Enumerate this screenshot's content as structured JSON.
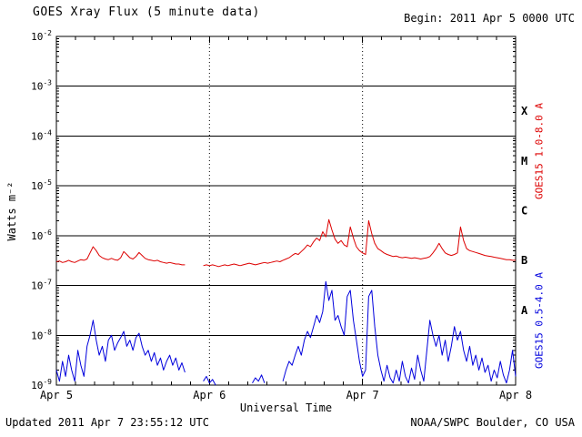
{
  "header": {
    "title": "GOES Xray Flux (5 minute data)",
    "begin": "Begin: 2011 Apr 5 0000 UTC"
  },
  "footer": {
    "updated": "Updated 2011 Apr 7 23:55:12 UTC",
    "credit": "NOAA/SWPC Boulder, CO USA"
  },
  "chart_data": {
    "type": "line",
    "title": "GOES Xray Flux (5 minute data)",
    "xlabel": "Universal Time",
    "ylabel": "Watts m⁻²",
    "xlim": [
      0,
      3
    ],
    "x_tick_positions": [
      0,
      1,
      2,
      3
    ],
    "x_tick_labels": [
      "Apr 5",
      "Apr 6",
      "Apr 7",
      "Apr 8"
    ],
    "y_exponent_top": -2,
    "y_exponent_bottom": -9,
    "y_tick_exponents": [
      -2,
      -3,
      -4,
      -5,
      -6,
      -7,
      -8,
      -9
    ],
    "grid_vertical_days": [
      1,
      2
    ],
    "flare_classes": [
      {
        "label": "X",
        "exp": -3.5
      },
      {
        "label": "M",
        "exp": -4.5
      },
      {
        "label": "C",
        "exp": -5.5
      },
      {
        "label": "B",
        "exp": -6.5
      },
      {
        "label": "A",
        "exp": -7.5
      }
    ],
    "series": [
      {
        "name": "GOES15 1.0-8.0 A",
        "color": "#dd0000",
        "points": [
          [
            0.0,
            3e-07
          ],
          [
            0.02,
            3.1e-07
          ],
          [
            0.04,
            2.9e-07
          ],
          [
            0.06,
            3e-07
          ],
          [
            0.08,
            3.2e-07
          ],
          [
            0.1,
            3e-07
          ],
          [
            0.12,
            2.9e-07
          ],
          [
            0.14,
            3.1e-07
          ],
          [
            0.16,
            3.3e-07
          ],
          [
            0.18,
            3.2e-07
          ],
          [
            0.2,
            3.4e-07
          ],
          [
            0.22,
            4.5e-07
          ],
          [
            0.24,
            6e-07
          ],
          [
            0.26,
            5e-07
          ],
          [
            0.28,
            4e-07
          ],
          [
            0.3,
            3.6e-07
          ],
          [
            0.32,
            3.4e-07
          ],
          [
            0.34,
            3.3e-07
          ],
          [
            0.36,
            3.5e-07
          ],
          [
            0.38,
            3.3e-07
          ],
          [
            0.4,
            3.2e-07
          ],
          [
            0.42,
            3.6e-07
          ],
          [
            0.44,
            4.8e-07
          ],
          [
            0.46,
            4.2e-07
          ],
          [
            0.48,
            3.6e-07
          ],
          [
            0.5,
            3.4e-07
          ],
          [
            0.52,
            3.8e-07
          ],
          [
            0.54,
            4.6e-07
          ],
          [
            0.56,
            4e-07
          ],
          [
            0.58,
            3.5e-07
          ],
          [
            0.6,
            3.3e-07
          ],
          [
            0.62,
            3.2e-07
          ],
          [
            0.64,
            3.1e-07
          ],
          [
            0.66,
            3.2e-07
          ],
          [
            0.68,
            3e-07
          ],
          [
            0.7,
            2.9e-07
          ],
          [
            0.72,
            2.8e-07
          ],
          [
            0.74,
            2.9e-07
          ],
          [
            0.76,
            2.8e-07
          ],
          [
            0.78,
            2.7e-07
          ],
          [
            0.8,
            2.7e-07
          ],
          [
            0.82,
            2.6e-07
          ],
          [
            0.84,
            2.6e-07
          ],
          [
            0.88,
            null
          ],
          [
            0.96,
            2.5e-07
          ],
          [
            0.98,
            2.6e-07
          ],
          [
            1.0,
            2.5e-07
          ],
          [
            1.02,
            2.6e-07
          ],
          [
            1.04,
            2.5e-07
          ],
          [
            1.06,
            2.4e-07
          ],
          [
            1.08,
            2.5e-07
          ],
          [
            1.1,
            2.6e-07
          ],
          [
            1.12,
            2.5e-07
          ],
          [
            1.14,
            2.6e-07
          ],
          [
            1.16,
            2.7e-07
          ],
          [
            1.18,
            2.6e-07
          ],
          [
            1.2,
            2.5e-07
          ],
          [
            1.22,
            2.6e-07
          ],
          [
            1.24,
            2.7e-07
          ],
          [
            1.26,
            2.8e-07
          ],
          [
            1.28,
            2.7e-07
          ],
          [
            1.3,
            2.6e-07
          ],
          [
            1.32,
            2.7e-07
          ],
          [
            1.34,
            2.8e-07
          ],
          [
            1.36,
            2.9e-07
          ],
          [
            1.38,
            2.8e-07
          ],
          [
            1.4,
            2.9e-07
          ],
          [
            1.42,
            3e-07
          ],
          [
            1.44,
            3.1e-07
          ],
          [
            1.46,
            3e-07
          ],
          [
            1.48,
            3.2e-07
          ],
          [
            1.5,
            3.4e-07
          ],
          [
            1.52,
            3.6e-07
          ],
          [
            1.54,
            4e-07
          ],
          [
            1.56,
            4.4e-07
          ],
          [
            1.58,
            4.2e-07
          ],
          [
            1.6,
            4.8e-07
          ],
          [
            1.62,
            5.5e-07
          ],
          [
            1.64,
            6.5e-07
          ],
          [
            1.66,
            6e-07
          ],
          [
            1.68,
            7.5e-07
          ],
          [
            1.7,
            9e-07
          ],
          [
            1.72,
            8e-07
          ],
          [
            1.74,
            1.2e-06
          ],
          [
            1.76,
            9.5e-07
          ],
          [
            1.78,
            2.1e-06
          ],
          [
            1.8,
            1.3e-06
          ],
          [
            1.82,
            8.5e-07
          ],
          [
            1.84,
            7e-07
          ],
          [
            1.86,
            8e-07
          ],
          [
            1.88,
            6.5e-07
          ],
          [
            1.9,
            6e-07
          ],
          [
            1.92,
            1.5e-06
          ],
          [
            1.94,
            9e-07
          ],
          [
            1.96,
            6e-07
          ],
          [
            1.98,
            5e-07
          ],
          [
            2.0,
            4.5e-07
          ],
          [
            2.02,
            4.2e-07
          ],
          [
            2.04,
            2e-06
          ],
          [
            2.06,
            1.1e-06
          ],
          [
            2.08,
            7e-07
          ],
          [
            2.1,
            5.5e-07
          ],
          [
            2.12,
            5e-07
          ],
          [
            2.14,
            4.5e-07
          ],
          [
            2.16,
            4.2e-07
          ],
          [
            2.18,
            4e-07
          ],
          [
            2.2,
            3.8e-07
          ],
          [
            2.22,
            3.9e-07
          ],
          [
            2.24,
            3.7e-07
          ],
          [
            2.26,
            3.6e-07
          ],
          [
            2.28,
            3.7e-07
          ],
          [
            2.3,
            3.6e-07
          ],
          [
            2.32,
            3.5e-07
          ],
          [
            2.34,
            3.6e-07
          ],
          [
            2.36,
            3.5e-07
          ],
          [
            2.38,
            3.4e-07
          ],
          [
            2.4,
            3.5e-07
          ],
          [
            2.42,
            3.6e-07
          ],
          [
            2.44,
            3.8e-07
          ],
          [
            2.46,
            4.5e-07
          ],
          [
            2.48,
            5.5e-07
          ],
          [
            2.5,
            7e-07
          ],
          [
            2.52,
            5.5e-07
          ],
          [
            2.54,
            4.5e-07
          ],
          [
            2.56,
            4.2e-07
          ],
          [
            2.58,
            4e-07
          ],
          [
            2.6,
            4.2e-07
          ],
          [
            2.62,
            4.5e-07
          ],
          [
            2.64,
            1.5e-06
          ],
          [
            2.66,
            8e-07
          ],
          [
            2.68,
            5.5e-07
          ],
          [
            2.7,
            5e-07
          ],
          [
            2.72,
            4.8e-07
          ],
          [
            2.74,
            4.6e-07
          ],
          [
            2.76,
            4.4e-07
          ],
          [
            2.78,
            4.2e-07
          ],
          [
            2.8,
            4e-07
          ],
          [
            2.82,
            3.9e-07
          ],
          [
            2.84,
            3.8e-07
          ],
          [
            2.86,
            3.7e-07
          ],
          [
            2.88,
            3.6e-07
          ],
          [
            2.9,
            3.5e-07
          ],
          [
            2.92,
            3.4e-07
          ],
          [
            2.94,
            3.3e-07
          ],
          [
            2.96,
            3.3e-07
          ],
          [
            2.98,
            3.2e-07
          ],
          [
            3.0,
            3.2e-07
          ]
        ]
      },
      {
        "name": "GOES15 0.5-4.0 A",
        "color": "#0000dd",
        "points": [
          [
            0.0,
            2e-09
          ],
          [
            0.02,
            1.2e-09
          ],
          [
            0.04,
            3e-09
          ],
          [
            0.06,
            1.5e-09
          ],
          [
            0.08,
            4e-09
          ],
          [
            0.1,
            2e-09
          ],
          [
            0.12,
            1.2e-09
          ],
          [
            0.14,
            5e-09
          ],
          [
            0.16,
            2.5e-09
          ],
          [
            0.18,
            1.5e-09
          ],
          [
            0.2,
            6e-09
          ],
          [
            0.22,
            1e-08
          ],
          [
            0.24,
            2e-08
          ],
          [
            0.26,
            8e-09
          ],
          [
            0.28,
            4e-09
          ],
          [
            0.3,
            6e-09
          ],
          [
            0.32,
            3e-09
          ],
          [
            0.34,
            8e-09
          ],
          [
            0.36,
            1e-08
          ],
          [
            0.38,
            5e-09
          ],
          [
            0.4,
            7e-09
          ],
          [
            0.42,
            9e-09
          ],
          [
            0.44,
            1.2e-08
          ],
          [
            0.46,
            6e-09
          ],
          [
            0.48,
            8e-09
          ],
          [
            0.5,
            5e-09
          ],
          [
            0.52,
            9e-09
          ],
          [
            0.54,
            1.1e-08
          ],
          [
            0.56,
            6e-09
          ],
          [
            0.58,
            4e-09
          ],
          [
            0.6,
            5e-09
          ],
          [
            0.62,
            3e-09
          ],
          [
            0.64,
            4.5e-09
          ],
          [
            0.66,
            2.5e-09
          ],
          [
            0.68,
            3.5e-09
          ],
          [
            0.7,
            2e-09
          ],
          [
            0.72,
            3e-09
          ],
          [
            0.74,
            4e-09
          ],
          [
            0.76,
            2.5e-09
          ],
          [
            0.78,
            3.5e-09
          ],
          [
            0.8,
            2e-09
          ],
          [
            0.82,
            2.8e-09
          ],
          [
            0.84,
            1.8e-09
          ],
          [
            0.88,
            null
          ],
          [
            0.96,
            1.2e-09
          ],
          [
            0.98,
            1.5e-09
          ],
          [
            1.0,
            1.1e-09
          ],
          [
            1.02,
            1.3e-09
          ],
          [
            1.04,
            1e-09
          ],
          [
            1.08,
            null
          ],
          [
            1.28,
            1.1e-09
          ],
          [
            1.3,
            1.4e-09
          ],
          [
            1.32,
            1.2e-09
          ],
          [
            1.34,
            1.6e-09
          ],
          [
            1.36,
            1.1e-09
          ],
          [
            1.4,
            null
          ],
          [
            1.48,
            1.2e-09
          ],
          [
            1.5,
            2e-09
          ],
          [
            1.52,
            3e-09
          ],
          [
            1.54,
            2.5e-09
          ],
          [
            1.56,
            4e-09
          ],
          [
            1.58,
            6e-09
          ],
          [
            1.6,
            4e-09
          ],
          [
            1.62,
            8e-09
          ],
          [
            1.64,
            1.2e-08
          ],
          [
            1.66,
            9e-09
          ],
          [
            1.68,
            1.5e-08
          ],
          [
            1.7,
            2.5e-08
          ],
          [
            1.72,
            1.8e-08
          ],
          [
            1.74,
            3e-08
          ],
          [
            1.76,
            1.2e-07
          ],
          [
            1.78,
            5e-08
          ],
          [
            1.8,
            8e-08
          ],
          [
            1.82,
            2e-08
          ],
          [
            1.84,
            2.5e-08
          ],
          [
            1.86,
            1.5e-08
          ],
          [
            1.88,
            1e-08
          ],
          [
            1.9,
            6e-08
          ],
          [
            1.92,
            8e-08
          ],
          [
            1.94,
            2e-08
          ],
          [
            1.96,
            8e-09
          ],
          [
            1.98,
            3e-09
          ],
          [
            2.0,
            1.5e-09
          ],
          [
            2.02,
            2e-09
          ],
          [
            2.04,
            6e-08
          ],
          [
            2.06,
            8e-08
          ],
          [
            2.08,
            1.5e-08
          ],
          [
            2.1,
            4e-09
          ],
          [
            2.12,
            2e-09
          ],
          [
            2.14,
            1.2e-09
          ],
          [
            2.16,
            2.5e-09
          ],
          [
            2.18,
            1.4e-09
          ],
          [
            2.2,
            1.1e-09
          ],
          [
            2.22,
            2e-09
          ],
          [
            2.24,
            1.2e-09
          ],
          [
            2.26,
            3e-09
          ],
          [
            2.28,
            1.5e-09
          ],
          [
            2.3,
            1.1e-09
          ],
          [
            2.32,
            2.2e-09
          ],
          [
            2.34,
            1.3e-09
          ],
          [
            2.36,
            4e-09
          ],
          [
            2.38,
            2e-09
          ],
          [
            2.4,
            1.2e-09
          ],
          [
            2.42,
            5e-09
          ],
          [
            2.44,
            2e-08
          ],
          [
            2.46,
            1e-08
          ],
          [
            2.48,
            6e-09
          ],
          [
            2.5,
            1e-08
          ],
          [
            2.52,
            4e-09
          ],
          [
            2.54,
            8e-09
          ],
          [
            2.56,
            3e-09
          ],
          [
            2.58,
            6e-09
          ],
          [
            2.6,
            1.5e-08
          ],
          [
            2.62,
            8e-09
          ],
          [
            2.64,
            1.2e-08
          ],
          [
            2.66,
            5e-09
          ],
          [
            2.68,
            3e-09
          ],
          [
            2.7,
            6e-09
          ],
          [
            2.72,
            2.5e-09
          ],
          [
            2.74,
            4e-09
          ],
          [
            2.76,
            2e-09
          ],
          [
            2.78,
            3.5e-09
          ],
          [
            2.8,
            1.8e-09
          ],
          [
            2.82,
            2.5e-09
          ],
          [
            2.84,
            1.2e-09
          ],
          [
            2.86,
            2e-09
          ],
          [
            2.88,
            1.4e-09
          ],
          [
            2.9,
            3e-09
          ],
          [
            2.92,
            1.6e-09
          ],
          [
            2.94,
            1.1e-09
          ],
          [
            2.96,
            2e-09
          ],
          [
            2.98,
            5e-09
          ],
          [
            3.0,
            1.5e-09
          ]
        ]
      }
    ]
  }
}
